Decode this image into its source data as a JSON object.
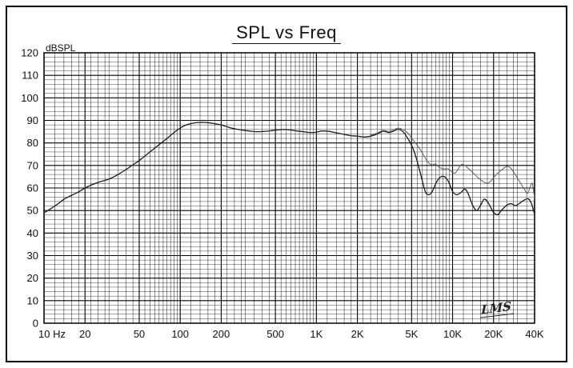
{
  "chart_data": {
    "type": "line",
    "title": "SPL vs Freq",
    "y_unit_label": "dBSPL",
    "signature": "LMS",
    "x_axis": {
      "scale": "log",
      "min": 10,
      "max": 40000,
      "ticks": [
        {
          "value": 10,
          "label": "10 Hz"
        },
        {
          "value": 20,
          "label": "20"
        },
        {
          "value": 50,
          "label": "50"
        },
        {
          "value": 100,
          "label": "100"
        },
        {
          "value": 200,
          "label": "200"
        },
        {
          "value": 500,
          "label": "500"
        },
        {
          "value": 1000,
          "label": "1K"
        },
        {
          "value": 2000,
          "label": "2K"
        },
        {
          "value": 5000,
          "label": "5K"
        },
        {
          "value": 10000,
          "label": "10K"
        },
        {
          "value": 20000,
          "label": "20K"
        },
        {
          "value": 40000,
          "label": "40K"
        }
      ]
    },
    "y_axis": {
      "min": 0,
      "max": 120,
      "major_step": 10,
      "minor_step": 2,
      "tick_labels": [
        "0",
        "10",
        "20",
        "30",
        "40",
        "50",
        "60",
        "70",
        "80",
        "90",
        "100",
        "110",
        "120"
      ]
    },
    "grid": {
      "on": true,
      "line_color": "#000000"
    },
    "series": [
      {
        "name": "spl-response-main",
        "color": "#1a1a1a",
        "points": [
          [
            10,
            49
          ],
          [
            11,
            50.5
          ],
          [
            12,
            52
          ],
          [
            13,
            53.5
          ],
          [
            14,
            55
          ],
          [
            15,
            56
          ],
          [
            16.5,
            57.2
          ],
          [
            18,
            58.3
          ],
          [
            20,
            60
          ],
          [
            22,
            61.2
          ],
          [
            25,
            62.5
          ],
          [
            28,
            63.4
          ],
          [
            31,
            64.3
          ],
          [
            35,
            66
          ],
          [
            40,
            68.2
          ],
          [
            45,
            70.3
          ],
          [
            50,
            72.2
          ],
          [
            55,
            74.2
          ],
          [
            60,
            76
          ],
          [
            66,
            78
          ],
          [
            72,
            79.8
          ],
          [
            80,
            82
          ],
          [
            90,
            84.6
          ],
          [
            100,
            86.6
          ],
          [
            110,
            87.9
          ],
          [
            125,
            88.8
          ],
          [
            140,
            89.1
          ],
          [
            160,
            89
          ],
          [
            180,
            88.5
          ],
          [
            200,
            88
          ],
          [
            225,
            87
          ],
          [
            250,
            86.3
          ],
          [
            280,
            85.8
          ],
          [
            320,
            85.3
          ],
          [
            360,
            85
          ],
          [
            410,
            85.1
          ],
          [
            460,
            85.4
          ],
          [
            520,
            85.8
          ],
          [
            580,
            86
          ],
          [
            640,
            85.8
          ],
          [
            700,
            85.4
          ],
          [
            800,
            85
          ],
          [
            900,
            84.6
          ],
          [
            1000,
            84.8
          ],
          [
            1100,
            85.3
          ],
          [
            1250,
            85.1
          ],
          [
            1400,
            84.5
          ],
          [
            1600,
            83.8
          ],
          [
            1800,
            83.2
          ],
          [
            2000,
            83
          ],
          [
            2250,
            82.6
          ],
          [
            2500,
            83
          ],
          [
            2800,
            84
          ],
          [
            3100,
            85.2
          ],
          [
            3400,
            84.6
          ],
          [
            3700,
            85.3
          ],
          [
            4000,
            86.1
          ],
          [
            4300,
            85.1
          ],
          [
            4600,
            82.8
          ],
          [
            5000,
            79
          ],
          [
            5400,
            73.5
          ],
          [
            5800,
            66.5
          ],
          [
            6300,
            58.5
          ],
          [
            6700,
            57
          ],
          [
            7100,
            58.5
          ],
          [
            7600,
            62.5
          ],
          [
            8100,
            64.8
          ],
          [
            8700,
            65
          ],
          [
            9300,
            63
          ],
          [
            10000,
            58.5
          ],
          [
            10700,
            57
          ],
          [
            11500,
            58
          ],
          [
            12300,
            59.5
          ],
          [
            13000,
            57.5
          ],
          [
            14000,
            52.5
          ],
          [
            15000,
            50
          ],
          [
            16000,
            52.2
          ],
          [
            17000,
            55
          ],
          [
            18000,
            54
          ],
          [
            19000,
            51.5
          ],
          [
            20000,
            49.2
          ],
          [
            21500,
            48.2
          ],
          [
            23000,
            50.3
          ],
          [
            25000,
            52.4
          ],
          [
            27000,
            53
          ],
          [
            29000,
            52.2
          ],
          [
            31000,
            53.2
          ],
          [
            33500,
            54.6
          ],
          [
            36000,
            55.2
          ],
          [
            38000,
            53
          ],
          [
            40000,
            48.2
          ]
        ]
      },
      {
        "name": "spl-response-secondary",
        "color": "#5f5f5f",
        "points": [
          [
            2500,
            83.4
          ],
          [
            2800,
            84.4
          ],
          [
            3100,
            85.6
          ],
          [
            3400,
            85.1
          ],
          [
            3700,
            85.9
          ],
          [
            4000,
            86.6
          ],
          [
            4300,
            86
          ],
          [
            4700,
            84.3
          ],
          [
            5100,
            81.5
          ],
          [
            5500,
            79
          ],
          [
            6000,
            75.5
          ],
          [
            6500,
            72
          ],
          [
            7000,
            70.3
          ],
          [
            7500,
            70.6
          ],
          [
            8000,
            69.2
          ],
          [
            8600,
            68.4
          ],
          [
            9200,
            68.6
          ],
          [
            9800,
            67.3
          ],
          [
            10400,
            66.6
          ],
          [
            11000,
            68.4
          ],
          [
            11600,
            70.4
          ],
          [
            12300,
            70.1
          ],
          [
            13000,
            68.7
          ],
          [
            14000,
            67
          ],
          [
            15000,
            65.2
          ],
          [
            16000,
            63.8
          ],
          [
            17000,
            62.6
          ],
          [
            18000,
            62.2
          ],
          [
            19000,
            63
          ],
          [
            20000,
            64.6
          ],
          [
            21500,
            66.6
          ],
          [
            23000,
            68.1
          ],
          [
            25000,
            69.6
          ],
          [
            26500,
            69
          ],
          [
            28000,
            67.2
          ],
          [
            30000,
            64.3
          ],
          [
            32000,
            61.6
          ],
          [
            34000,
            59
          ],
          [
            35500,
            57.6
          ],
          [
            37000,
            60.2
          ],
          [
            38500,
            62
          ],
          [
            40000,
            55.3
          ]
        ]
      }
    ]
  }
}
